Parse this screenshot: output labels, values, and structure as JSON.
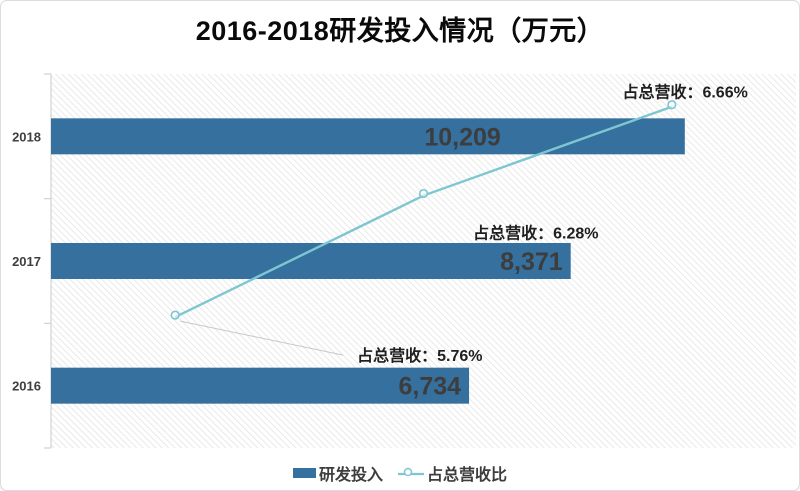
{
  "chart_data": {
    "type": "bar",
    "subtype": "horizontal-bars-with-line-overlay",
    "title": "2016-2018研发投入情况（万元）",
    "categories": [
      "2016",
      "2017",
      "2018"
    ],
    "series": [
      {
        "name": "研发投入",
        "type": "bar",
        "values": [
          6734,
          8371,
          10209
        ],
        "value_labels": [
          "6,734",
          "8,371",
          "10,209"
        ],
        "color": "#35709E"
      },
      {
        "name": "占总营收比",
        "type": "line",
        "values": [
          5.76,
          6.28,
          6.66
        ],
        "point_labels": [
          "占总营收：5.76%",
          "占总营收：6.28%",
          "占总营收：6.66%"
        ],
        "color": "#7EC6D0"
      }
    ],
    "value_axis": {
      "min": 0,
      "max": 12000,
      "visible": false
    },
    "secondary_axis": {
      "min": 5.2,
      "max": 6.8,
      "visible": false,
      "unit": "%"
    },
    "legend": {
      "position": "bottom",
      "items": [
        "研发投入",
        "占总营收比"
      ]
    },
    "grid": false,
    "plot_background": "diagonal-hatch"
  },
  "colors": {
    "bar": "#35709E",
    "line": "#7EC6D0",
    "axis": "#D2D2D2",
    "leader": "#C8C8C8",
    "hatch": "#E9E9E9",
    "title": "#0A0A0A"
  }
}
